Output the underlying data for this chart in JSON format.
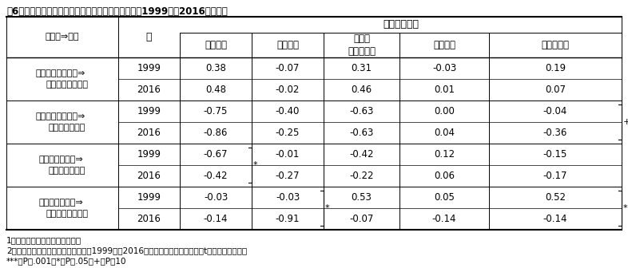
{
  "title": "表6：最長職と現職との職種移動別にみた仕事特性：1999年と2016年の比較",
  "col_header_1": "最長職⇒現職",
  "col_header_2": "年",
  "col_header_group": "仕事特性１）",
  "col_headers": [
    "自由裁量",
    "仕事要求",
    "技術・\n知識の活用",
    "失業不安",
    "仕事満足度"
  ],
  "row_groups": [
    {
      "label_line1": "ホワイトカラー職⇒",
      "label_line2": "ホワイトカラー職",
      "rows": [
        {
          "year": "1999",
          "values": [
            "0.38",
            "-0.07",
            "0.31",
            "-0.03",
            "0.19"
          ]
        },
        {
          "year": "2016",
          "values": [
            "0.48",
            "-0.02",
            "0.46",
            "0.01",
            "0.07"
          ]
        }
      ],
      "brackets": []
    },
    {
      "label_line1": "ホワイトカラー職⇒",
      "label_line2": "ブルーカラー職",
      "rows": [
        {
          "year": "1999",
          "values": [
            "-0.75",
            "-0.40",
            "-0.63",
            "0.00",
            "-0.04"
          ]
        },
        {
          "year": "2016",
          "values": [
            "-0.86",
            "-0.25",
            "-0.63",
            "0.04",
            "-0.36"
          ]
        }
      ],
      "brackets": [
        {
          "col": 4,
          "sig": "+"
        }
      ]
    },
    {
      "label_line1": "ブルーカラー職⇒",
      "label_line2": "ブルーカラー職",
      "rows": [
        {
          "year": "1999",
          "values": [
            "-0.67",
            "-0.01",
            "-0.42",
            "0.12",
            "-0.15"
          ]
        },
        {
          "year": "2016",
          "values": [
            "-0.42",
            "-0.27",
            "-0.22",
            "0.06",
            "-0.17"
          ]
        }
      ],
      "brackets": [
        {
          "col": 0,
          "sig": "*"
        }
      ]
    },
    {
      "label_line1": "ブルーカラー職⇒",
      "label_line2": "ホワイトカラー職",
      "rows": [
        {
          "year": "1999",
          "values": [
            "-0.03",
            "-0.03",
            "0.53",
            "0.05",
            "0.52"
          ]
        },
        {
          "year": "2016",
          "values": [
            "-0.14",
            "-0.91",
            "-0.07",
            "-0.14",
            "-0.14"
          ]
        }
      ],
      "brackets": [
        {
          "col": 1,
          "sig": "*"
        },
        {
          "col": 4,
          "sig": "*"
        }
      ]
    }
  ],
  "footnotes": [
    "1）スコアはすべて標準化した。",
    "2）仕事特性の指標ごとに、平均値が1999年と2016年で有意に異なるか否かはt検定で評価した。",
    "***；P＜.001、*；P＜.05、+；P＜10"
  ]
}
